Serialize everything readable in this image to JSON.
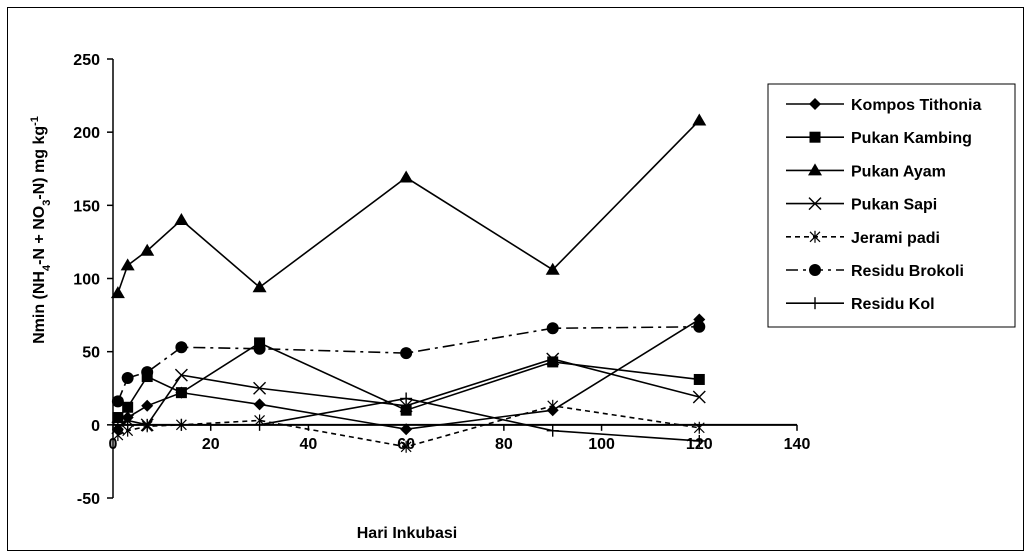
{
  "chart_data": {
    "type": "line",
    "xlabel": "Hari Inkubasi",
    "ylabel": {
      "pre": "Nmin (NH",
      "sub1": "4",
      "mid": "-N + NO",
      "sub2": "3",
      "post": "-N) mg kg",
      "sup": "-1"
    },
    "xlim": [
      0,
      140
    ],
    "ylim": [
      -50,
      250
    ],
    "xticks": [
      0,
      20,
      40,
      60,
      80,
      100,
      120,
      140
    ],
    "yticks": [
      -50,
      0,
      50,
      100,
      150,
      200,
      250
    ],
    "grid": false,
    "legend_position": "right",
    "x": [
      1,
      3,
      7,
      14,
      30,
      60,
      90,
      120
    ],
    "series": [
      {
        "name": "Kompos Tithonia",
        "marker": "diamond",
        "dash": "solid",
        "values": [
          -3,
          5,
          13,
          22,
          14,
          -3,
          10,
          72
        ]
      },
      {
        "name": "Pukan Kambing",
        "marker": "square",
        "dash": "solid",
        "values": [
          5,
          12,
          33,
          22,
          56,
          10,
          43,
          31
        ]
      },
      {
        "name": "Pukan Ayam",
        "marker": "triangle",
        "dash": "solid",
        "values": [
          90,
          109,
          119,
          140,
          94,
          169,
          106,
          208
        ]
      },
      {
        "name": "Pukan Sapi",
        "marker": "x",
        "dash": "solid",
        "values": [
          -2,
          3,
          0,
          34,
          25,
          13,
          45,
          19
        ]
      },
      {
        "name": "Jerami padi",
        "marker": "asterisk",
        "dash": "dashed",
        "values": [
          -7,
          -4,
          -1,
          0,
          3,
          -15,
          13,
          -2
        ]
      },
      {
        "name": "Residu Brokoli",
        "marker": "circle",
        "dash": "dashdot",
        "values": [
          16,
          32,
          36,
          53,
          52,
          49,
          66,
          67
        ]
      },
      {
        "name": "Residu Kol",
        "marker": "plus",
        "dash": "solid",
        "values": [
          0,
          0,
          0,
          0,
          0,
          18,
          -4,
          -11
        ]
      }
    ]
  }
}
